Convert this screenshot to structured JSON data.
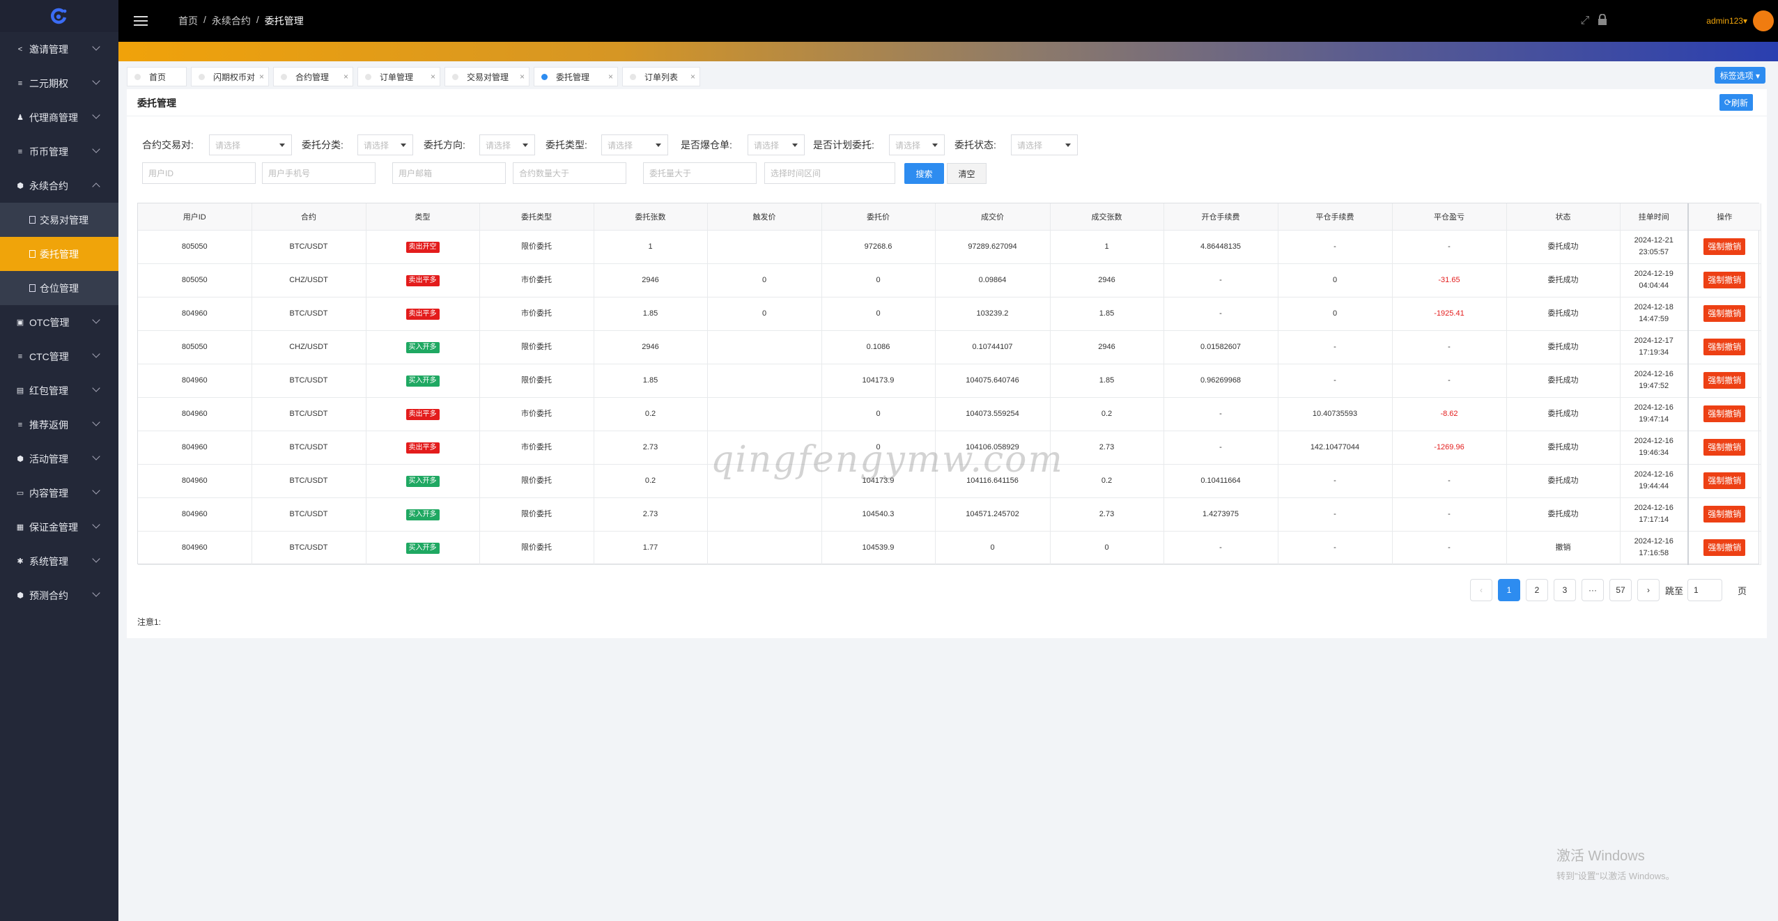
{
  "sidebar": {
    "items": [
      {
        "label": "邀请管理",
        "icon": "share-icon"
      },
      {
        "label": "二元期权",
        "icon": "sliders-icon"
      },
      {
        "label": "代理商管理",
        "icon": "users-icon"
      },
      {
        "label": "币币管理",
        "icon": "sliders-icon"
      },
      {
        "label": "永续合约",
        "icon": "box-icon"
      },
      {
        "label": "OTC管理",
        "icon": "briefcase-icon"
      },
      {
        "label": "CTC管理",
        "icon": "sliders-icon"
      },
      {
        "label": "红包管理",
        "icon": "wallet-icon"
      },
      {
        "label": "推荐返佣",
        "icon": "sliders-icon"
      },
      {
        "label": "活动管理",
        "icon": "box-icon"
      },
      {
        "label": "内容管理",
        "icon": "inbox-icon"
      },
      {
        "label": "保证金管理",
        "icon": "money-icon"
      },
      {
        "label": "系统管理",
        "icon": "gear-icon"
      },
      {
        "label": "预测合约",
        "icon": "box-icon"
      }
    ],
    "sub": [
      "交易对管理",
      "委托管理",
      "仓位管理"
    ]
  },
  "header": {
    "crumbs": [
      "首页",
      "/",
      "永续合约",
      "/",
      "委托管理"
    ],
    "user": "admin123▾"
  },
  "tabs": [
    {
      "label": "首页"
    },
    {
      "label": "闪期权币对"
    },
    {
      "label": "合约管理"
    },
    {
      "label": "订单管理"
    },
    {
      "label": "交易对管理"
    },
    {
      "label": "委托管理"
    },
    {
      "label": "订单列表"
    }
  ],
  "tab_select": "标签选项 ▾",
  "page": {
    "title": "委托管理",
    "refresh": "刷新",
    "note": "注意1:"
  },
  "filters": {
    "labels": [
      "合约交易对:",
      "委托分类:",
      "委托方向:",
      "委托类型:",
      "是否爆仓单:",
      "是否计划委托:",
      "委托状态:"
    ],
    "select_placeholder": "请选择",
    "inputs": [
      "用户ID",
      "用户手机号",
      "用户邮箱",
      "合约数量大于",
      "委托量大于",
      "选择时间区间"
    ],
    "search": "搜索",
    "clear": "清空"
  },
  "table": {
    "headers": [
      "用户ID",
      "合约",
      "类型",
      "委托类型",
      "委托张数",
      "触发价",
      "委托价",
      "成交价",
      "成交张数",
      "开仓手续费",
      "平仓手续费",
      "平仓盈亏",
      "状态",
      "挂单时间",
      "操作"
    ],
    "action": "强制撤销",
    "rows": [
      {
        "uid": "805050",
        "contract": "BTC/USDT",
        "type": "卖出开空",
        "type_color": "red",
        "otype": "限价委托",
        "qty": "1",
        "trigger": "",
        "price": "97268.6",
        "deal_price": "97289.627094",
        "deal_qty": "1",
        "open_fee": "4.86448135",
        "close_fee": "-",
        "pnl": "-",
        "status": "委托成功",
        "date": "2024-12-21",
        "time": "23:05:57"
      },
      {
        "uid": "805050",
        "contract": "CHZ/USDT",
        "type": "卖出平多",
        "type_color": "red",
        "otype": "市价委托",
        "qty": "2946",
        "trigger": "0",
        "price": "0",
        "deal_price": "0.09864",
        "deal_qty": "2946",
        "open_fee": "-",
        "close_fee": "0",
        "pnl": "-31.65",
        "status": "委托成功",
        "date": "2024-12-19",
        "time": "04:04:44"
      },
      {
        "uid": "804960",
        "contract": "BTC/USDT",
        "type": "卖出平多",
        "type_color": "red",
        "otype": "市价委托",
        "qty": "1.85",
        "trigger": "0",
        "price": "0",
        "deal_price": "103239.2",
        "deal_qty": "1.85",
        "open_fee": "-",
        "close_fee": "0",
        "pnl": "-1925.41",
        "status": "委托成功",
        "date": "2024-12-18",
        "time": "14:47:59"
      },
      {
        "uid": "805050",
        "contract": "CHZ/USDT",
        "type": "买入开多",
        "type_color": "green",
        "otype": "限价委托",
        "qty": "2946",
        "trigger": "",
        "price": "0.1086",
        "deal_price": "0.10744107",
        "deal_qty": "2946",
        "open_fee": "0.01582607",
        "close_fee": "-",
        "pnl": "-",
        "status": "委托成功",
        "date": "2024-12-17",
        "time": "17:19:34"
      },
      {
        "uid": "804960",
        "contract": "BTC/USDT",
        "type": "买入开多",
        "type_color": "green",
        "otype": "限价委托",
        "qty": "1.85",
        "trigger": "",
        "price": "104173.9",
        "deal_price": "104075.640746",
        "deal_qty": "1.85",
        "open_fee": "0.96269968",
        "close_fee": "-",
        "pnl": "-",
        "status": "委托成功",
        "date": "2024-12-16",
        "time": "19:47:52"
      },
      {
        "uid": "804960",
        "contract": "BTC/USDT",
        "type": "卖出平多",
        "type_color": "red",
        "otype": "市价委托",
        "qty": "0.2",
        "trigger": "",
        "price": "0",
        "deal_price": "104073.559254",
        "deal_qty": "0.2",
        "open_fee": "-",
        "close_fee": "10.40735593",
        "pnl": "-8.62",
        "status": "委托成功",
        "date": "2024-12-16",
        "time": "19:47:14"
      },
      {
        "uid": "804960",
        "contract": "BTC/USDT",
        "type": "卖出平多",
        "type_color": "red",
        "otype": "市价委托",
        "qty": "2.73",
        "trigger": "",
        "price": "0",
        "deal_price": "104106.058929",
        "deal_qty": "2.73",
        "open_fee": "-",
        "close_fee": "142.10477044",
        "pnl": "-1269.96",
        "status": "委托成功",
        "date": "2024-12-16",
        "time": "19:46:34"
      },
      {
        "uid": "804960",
        "contract": "BTC/USDT",
        "type": "买入开多",
        "type_color": "green",
        "otype": "限价委托",
        "qty": "0.2",
        "trigger": "",
        "price": "104173.9",
        "deal_price": "104116.641156",
        "deal_qty": "0.2",
        "open_fee": "0.10411664",
        "close_fee": "-",
        "pnl": "-",
        "status": "委托成功",
        "date": "2024-12-16",
        "time": "19:44:44"
      },
      {
        "uid": "804960",
        "contract": "BTC/USDT",
        "type": "买入开多",
        "type_color": "green",
        "otype": "限价委托",
        "qty": "2.73",
        "trigger": "",
        "price": "104540.3",
        "deal_price": "104571.245702",
        "deal_qty": "2.73",
        "open_fee": "1.4273975",
        "close_fee": "-",
        "pnl": "-",
        "status": "委托成功",
        "date": "2024-12-16",
        "time": "17:17:14"
      },
      {
        "uid": "804960",
        "contract": "BTC/USDT",
        "type": "买入开多",
        "type_color": "green",
        "otype": "限价委托",
        "qty": "1.77",
        "trigger": "",
        "price": "104539.9",
        "deal_price": "0",
        "deal_qty": "0",
        "open_fee": "-",
        "close_fee": "-",
        "pnl": "-",
        "status": "撤销",
        "date": "2024-12-16",
        "time": "17:16:58"
      }
    ]
  },
  "pager": {
    "pages": [
      "1",
      "2",
      "3",
      "···",
      "57"
    ],
    "current": "1",
    "jump_label": "跳至",
    "jump_value": "1",
    "unit": "页"
  },
  "watermark": "qingfengymw.com",
  "windows": {
    "title": "激活 Windows",
    "sub": "转到\"设置\"以激活 Windows。"
  },
  "colors": {
    "accent": "#2d8cf0",
    "active_menu": "#f0a40a",
    "danger": "#ed4014",
    "sell": "#e31c1c",
    "buy": "#1fa862"
  }
}
